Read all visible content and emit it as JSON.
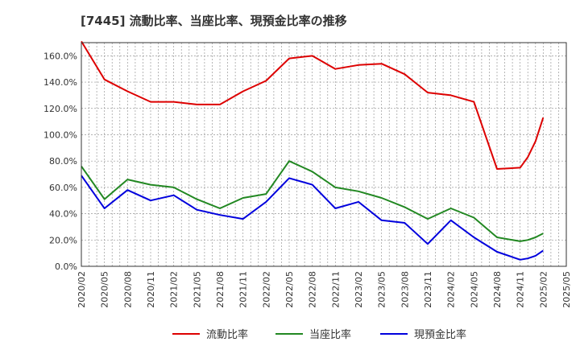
{
  "chart_data": {
    "type": "line",
    "title": "[7445]  流動比率、当座比率、現預金比率の推移",
    "xlabel": "",
    "ylabel": "",
    "ylim": [
      0,
      170
    ],
    "grid": true,
    "legend_position": "bottom",
    "x_ticks": [
      "2020/02",
      "2020/05",
      "2020/08",
      "2020/11",
      "2021/02",
      "2021/05",
      "2021/08",
      "2021/11",
      "2022/02",
      "2022/05",
      "2022/08",
      "2022/11",
      "2023/02",
      "2023/05",
      "2023/08",
      "2023/11",
      "2024/02",
      "2024/05",
      "2024/08",
      "2024/11",
      "2025/02",
      "2025/05"
    ],
    "y_ticks": [
      "0.0%",
      "20.0%",
      "40.0%",
      "60.0%",
      "80.0%",
      "100.0%",
      "120.0%",
      "140.0%",
      "160.0%"
    ],
    "x": [
      0,
      3,
      6,
      9,
      12,
      15,
      18,
      21,
      24,
      27,
      30,
      33,
      36,
      39,
      42,
      45,
      48,
      51,
      54,
      57,
      58,
      59,
      60
    ],
    "series": [
      {
        "name": "流動比率",
        "color": "#dd0000",
        "values": [
          171,
          142,
          133,
          125,
          125,
          123,
          123,
          133,
          141,
          158,
          160,
          150,
          153,
          154,
          146,
          132,
          130,
          125,
          74,
          75,
          83,
          95,
          113
        ]
      },
      {
        "name": "当座比率",
        "color": "#228822",
        "values": [
          76,
          51,
          66,
          62,
          60,
          51,
          44,
          52,
          55,
          80,
          72,
          60,
          57,
          52,
          45,
          36,
          44,
          37,
          22,
          19,
          20,
          22,
          25
        ]
      },
      {
        "name": "現預金比率",
        "color": "#0000dd",
        "values": [
          69,
          44,
          58,
          50,
          54,
          43,
          39,
          36,
          49,
          67,
          62,
          44,
          49,
          35,
          33,
          17,
          35,
          22,
          11,
          5,
          6,
          8,
          12
        ]
      }
    ]
  }
}
